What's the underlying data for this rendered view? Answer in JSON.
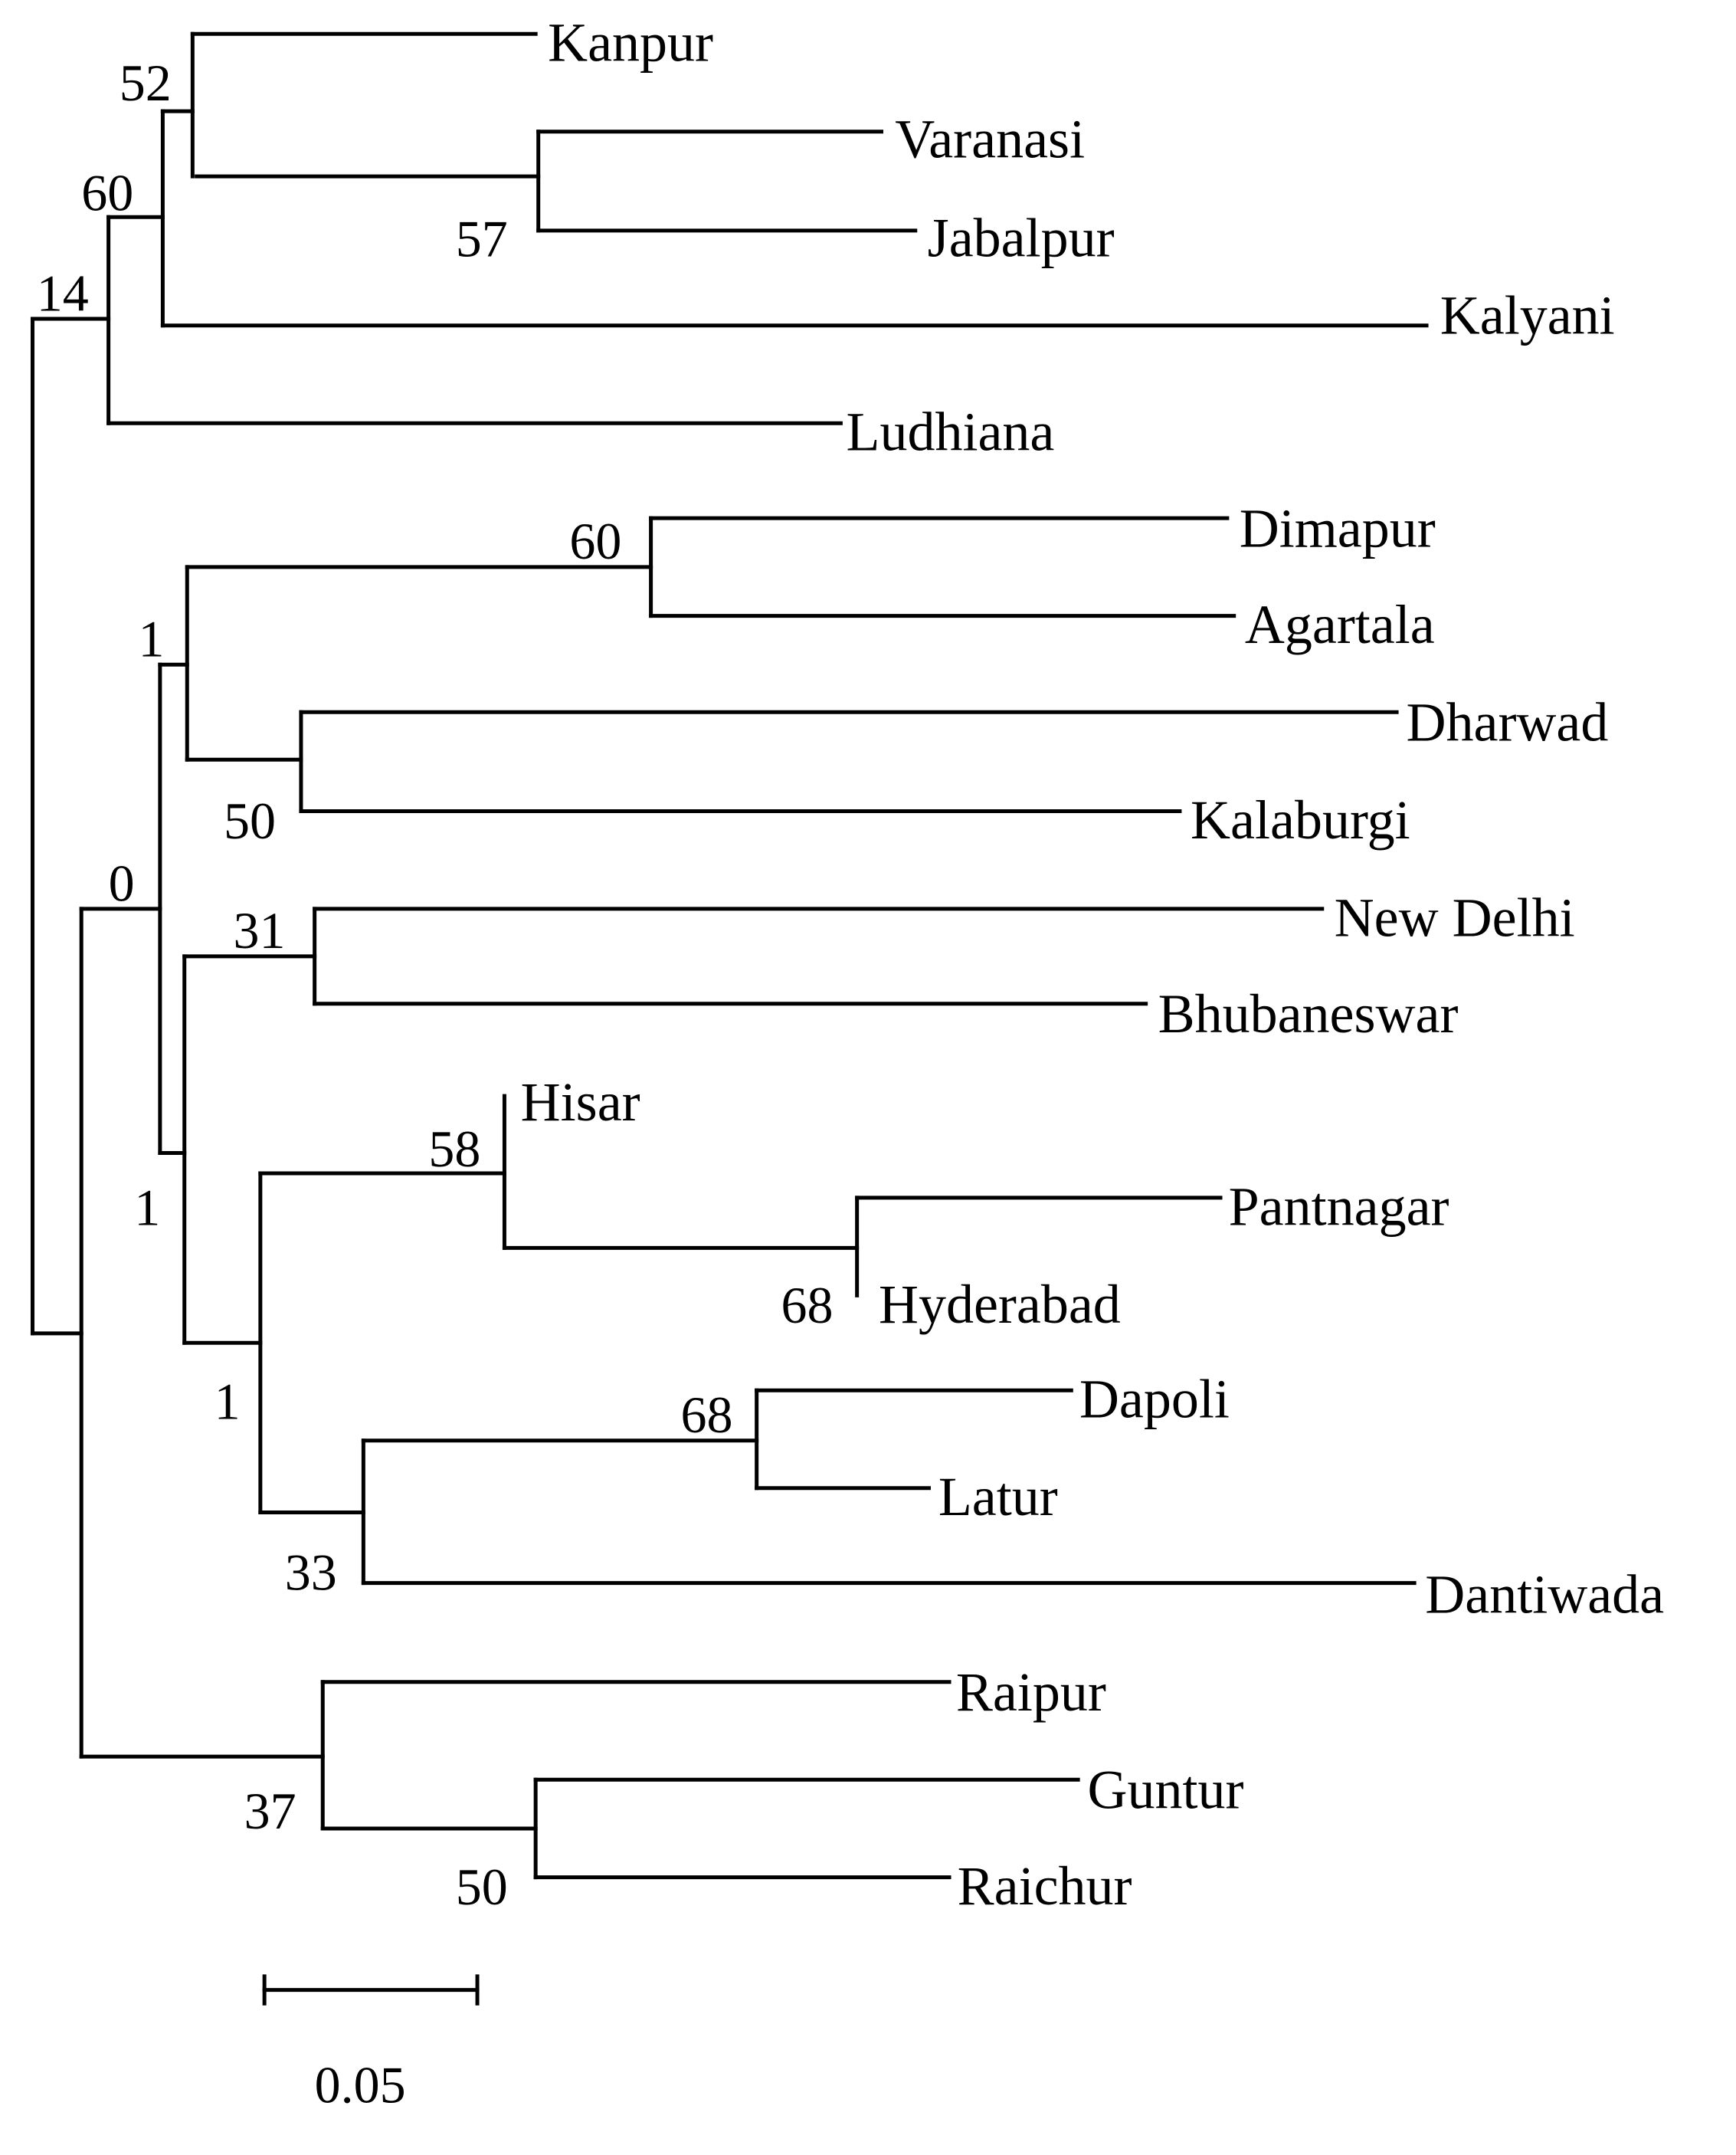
{
  "tree": {
    "leaves": [
      {
        "id": "kanpur",
        "label": "Kanpur"
      },
      {
        "id": "varanasi",
        "label": "Varanasi"
      },
      {
        "id": "jabalpur",
        "label": "Jabalpur"
      },
      {
        "id": "kalyani",
        "label": "Kalyani"
      },
      {
        "id": "ludhiana",
        "label": "Ludhiana"
      },
      {
        "id": "dimapur",
        "label": "Dimapur"
      },
      {
        "id": "agartala",
        "label": "Agartala"
      },
      {
        "id": "dharwad",
        "label": "Dharwad"
      },
      {
        "id": "kalaburgi",
        "label": "Kalaburgi"
      },
      {
        "id": "new-delhi",
        "label": "New Delhi"
      },
      {
        "id": "bhubaneswar",
        "label": "Bhubaneswar"
      },
      {
        "id": "hisar",
        "label": "Hisar"
      },
      {
        "id": "pantnagar",
        "label": "Pantnagar"
      },
      {
        "id": "hyderabad",
        "label": "Hyderabad"
      },
      {
        "id": "dapoli",
        "label": "Dapoli"
      },
      {
        "id": "latur",
        "label": "Latur"
      },
      {
        "id": "dantiwada",
        "label": "Dantiwada"
      },
      {
        "id": "raipur",
        "label": "Raipur"
      },
      {
        "id": "guntur",
        "label": "Guntur"
      },
      {
        "id": "raichur",
        "label": "Raichur"
      }
    ],
    "support_values": [
      {
        "id": "n-kanpur-varanasi-jabalpur",
        "value": "52"
      },
      {
        "id": "n-varanasi-jabalpur",
        "value": "57"
      },
      {
        "id": "n-kalyani-group",
        "value": "60"
      },
      {
        "id": "n-ludhiana-group",
        "value": "14"
      },
      {
        "id": "n-dimapur-agartala",
        "value": "60"
      },
      {
        "id": "n-northeast-south",
        "value": "1"
      },
      {
        "id": "n-dharwad-kalaburgi",
        "value": "50"
      },
      {
        "id": "n-second-clade",
        "value": "0"
      },
      {
        "id": "n-newdelhi-bhubaneswar",
        "value": "31"
      },
      {
        "id": "n-hisar-group",
        "value": "58"
      },
      {
        "id": "n-pantnagar-hyderabad",
        "value": "68"
      },
      {
        "id": "n-central-a",
        "value": "1"
      },
      {
        "id": "n-central-b",
        "value": "1"
      },
      {
        "id": "n-dapoli-latur",
        "value": "68"
      },
      {
        "id": "n-dantiwada-group",
        "value": "33"
      },
      {
        "id": "n-raipur-group",
        "value": "37"
      },
      {
        "id": "n-guntur-raichur",
        "value": "50"
      }
    ],
    "scale_bar": {
      "label": "0.05"
    }
  }
}
